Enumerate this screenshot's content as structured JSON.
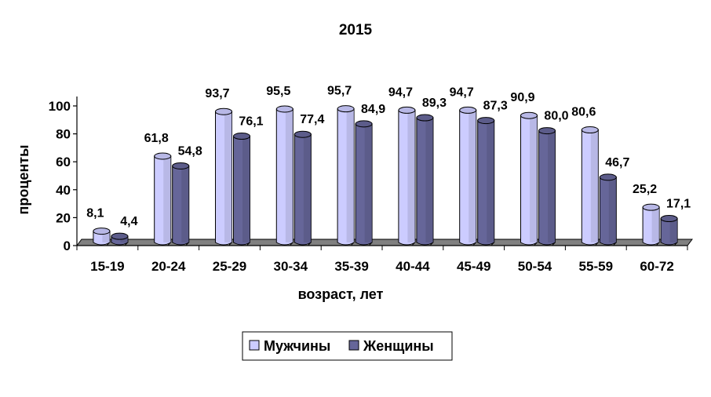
{
  "chart_data": {
    "type": "bar",
    "title": "2015",
    "xlabel": "возраст, лет",
    "ylabel": "проценты",
    "categories": [
      "15-19",
      "20-24",
      "25-29",
      "30-34",
      "35-39",
      "40-44",
      "45-49",
      "50-54",
      "55-59",
      "60-72"
    ],
    "series": [
      {
        "name": "Мужчины",
        "color": "#ccccff",
        "values": [
          8.1,
          61.8,
          93.7,
          95.5,
          95.7,
          94.7,
          94.7,
          90.9,
          80.6,
          25.2
        ],
        "labels": [
          "8,1",
          "61,8",
          "93,7",
          "95,5",
          "95,7",
          "94,7",
          "94,7",
          "90,9",
          "80,6",
          "25,2"
        ]
      },
      {
        "name": "Женщины",
        "color": "#666699",
        "values": [
          4.4,
          54.8,
          76.1,
          77.4,
          84.9,
          89.3,
          87.3,
          80.0,
          46.7,
          17.1
        ],
        "labels": [
          "4,4",
          "54,8",
          "76,1",
          "77,4",
          "84,9",
          "89,3",
          "87,3",
          "80,0",
          "46,7",
          "17,1"
        ]
      }
    ],
    "ylim": [
      0,
      100
    ],
    "yticks": [
      0,
      20,
      40,
      60,
      80,
      100
    ],
    "grid": false,
    "legend_position": "bottom"
  }
}
